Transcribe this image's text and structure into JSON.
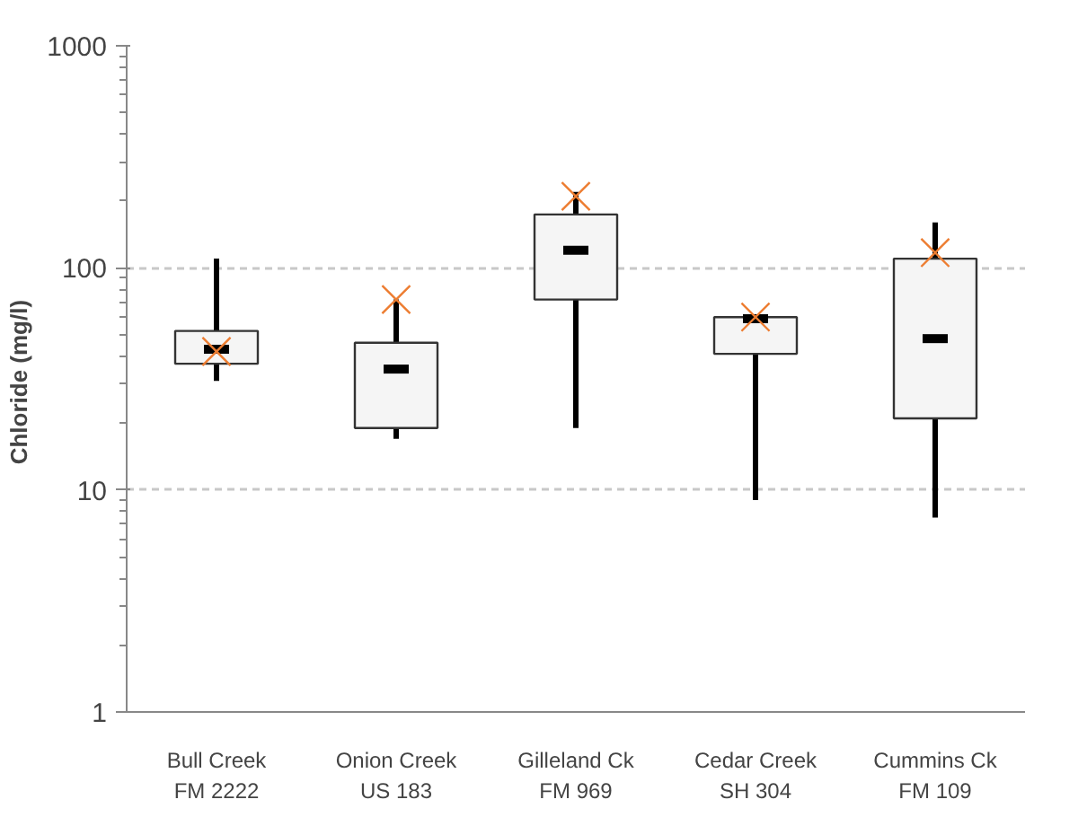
{
  "chart_data": {
    "type": "box",
    "ylabel": "Chloride  (mg/l)",
    "categories": [
      "Bull Creek\nFM 2222",
      "Onion Creek\nUS 183",
      "Gilleland Ck\nFM 969",
      "Cedar Creek\nSH 304",
      "Cummins Ck\nFM 109"
    ],
    "boxes": [
      {
        "low": 31,
        "q1": 37,
        "median": 43,
        "q3": 52,
        "high": 110,
        "mean": 42
      },
      {
        "low": 17,
        "q1": 19,
        "median": 35,
        "q3": 46,
        "high": 72,
        "mean": 72
      },
      {
        "low": 19,
        "q1": 72,
        "median": 120,
        "q3": 174,
        "high": 220,
        "mean": 210
      },
      {
        "low": 9,
        "q1": 41,
        "median": 59,
        "q3": 60,
        "high": 60,
        "mean": 60
      },
      {
        "low": 7.5,
        "q1": 21,
        "median": 48,
        "q3": 110,
        "high": 160,
        "mean": 117
      }
    ],
    "color": "#f5f5f5",
    "log": "y",
    "ylim": [
      1,
      1000
    ],
    "yticks": [
      1,
      10,
      100,
      1000
    ],
    "grid": "y"
  }
}
